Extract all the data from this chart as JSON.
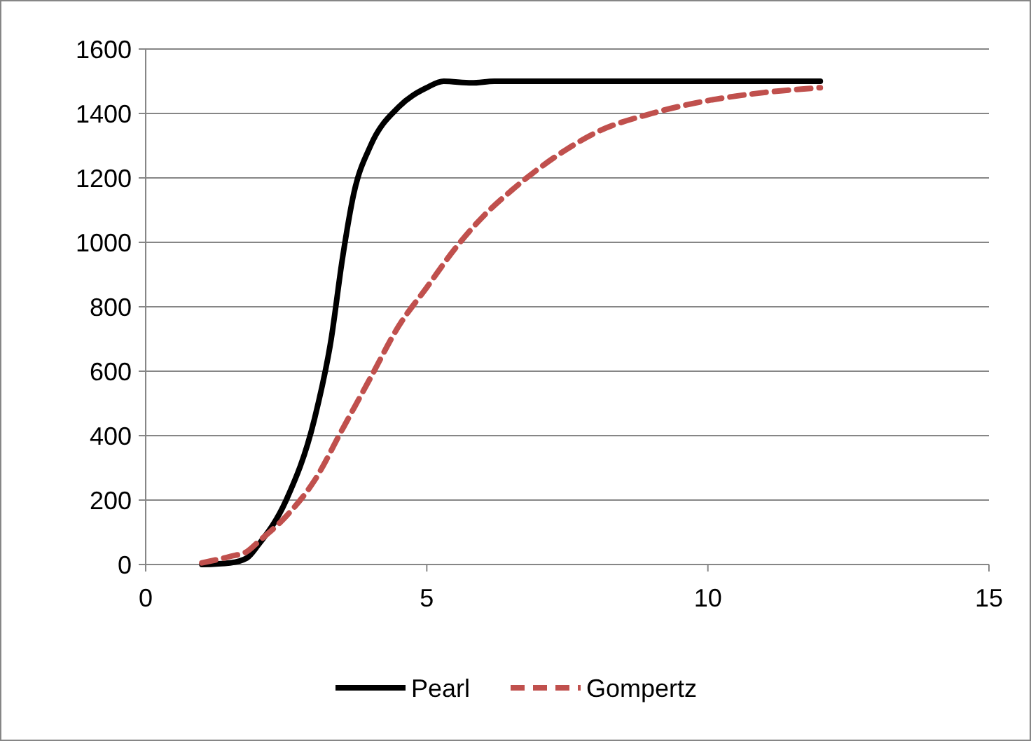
{
  "chart_data": {
    "type": "line",
    "xlim": [
      0,
      15
    ],
    "xticks": [
      0,
      5,
      10,
      15
    ],
    "ylim": [
      0,
      1600
    ],
    "yticks": [
      0,
      200,
      400,
      600,
      800,
      1000,
      1200,
      1400,
      1600
    ],
    "grid": "y",
    "legend": "bottom",
    "series": [
      {
        "name": "Pearl",
        "color": "#000000",
        "line_style": "solid",
        "x": [
          1,
          1.5,
          1.8,
          2,
          2.5,
          3,
          3.3,
          3.5,
          3.7,
          4,
          4.5,
          5,
          5.3,
          5.8,
          6.2,
          12
        ],
        "values": [
          0,
          5,
          20,
          60,
          200,
          450,
          700,
          950,
          1150,
          1300,
          1420,
          1480,
          1500,
          1495,
          1500,
          1500
        ]
      },
      {
        "name": "Gompertz",
        "color": "#c0504d",
        "line_style": "dashed",
        "x": [
          1,
          1.5,
          1.8,
          2,
          2.5,
          3,
          3.5,
          4,
          4.5,
          5,
          5.5,
          6,
          6.5,
          7,
          7.5,
          8,
          9,
          10,
          11,
          12
        ],
        "values": [
          5,
          25,
          40,
          70,
          150,
          260,
          420,
          580,
          740,
          860,
          980,
          1080,
          1160,
          1230,
          1290,
          1340,
          1400,
          1440,
          1465,
          1480
        ]
      }
    ]
  }
}
